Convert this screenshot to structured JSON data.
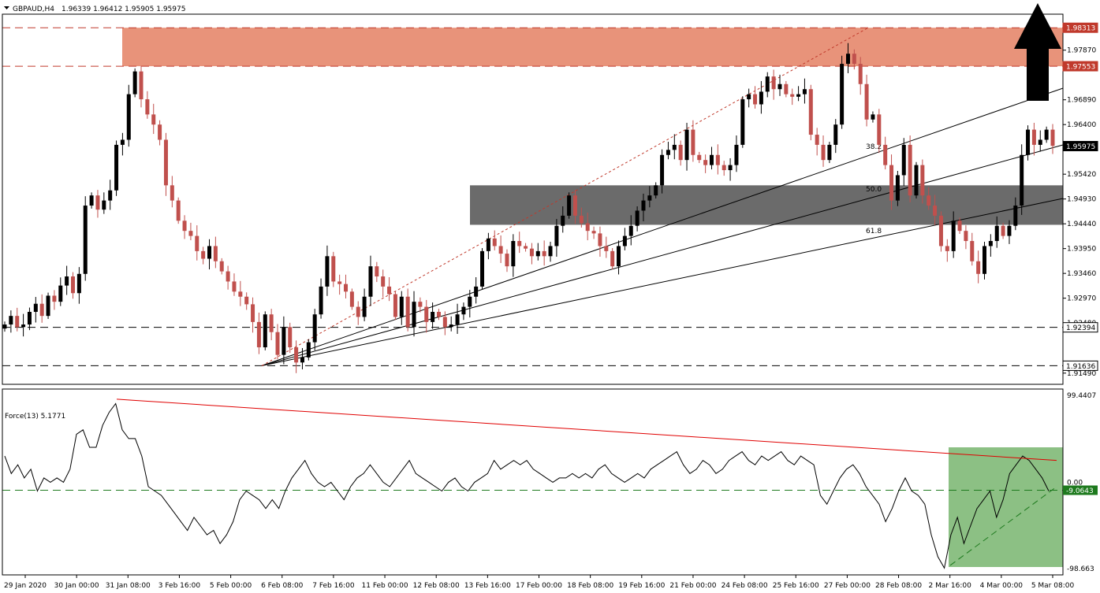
{
  "header": {
    "symbol": "GBPAUD,H4",
    "ohlc": "1.96339 1.96412 1.95905 1.95975"
  },
  "indicator": {
    "title": "Force(13) 5.1771"
  },
  "colors": {
    "bull": "#000000",
    "bear": "#c0504d",
    "resistance_zone": "#e8937a",
    "support_zone": "#6b6b6b",
    "force_zone": "#8cc084",
    "red_tag": "#c0392b",
    "green_tag": "#1e7a1e"
  },
  "chart_data": [
    {
      "type": "candlestick",
      "symbol": "GBPAUD",
      "timeframe": "H4",
      "y_ticks": [
        1.9787,
        1.9689,
        1.964,
        1.9542,
        1.9493,
        1.9444,
        1.9395,
        1.9346,
        1.9297,
        1.9248,
        1.9149
      ],
      "x_labels": [
        "29 Jan 2020",
        "30 Jan 00:00",
        "31 Jan 08:00",
        "3 Feb 16:00",
        "5 Feb 00:00",
        "6 Feb 08:00",
        "7 Feb 16:00",
        "11 Feb 00:00",
        "12 Feb 08:00",
        "13 Feb 16:00",
        "17 Feb 00:00",
        "18 Feb 08:00",
        "19 Feb 16:00",
        "21 Feb 00:00",
        "24 Feb 08:00",
        "25 Feb 16:00",
        "27 Feb 00:00",
        "28 Feb 08:00",
        "2 Mar 16:00",
        "4 Mar 00:00",
        "5 Mar 08:00"
      ],
      "price_tags": [
        {
          "value": "1.98313",
          "kind": "red"
        },
        {
          "value": "1.97553",
          "kind": "red"
        },
        {
          "value": "1.95975",
          "kind": "current"
        },
        {
          "value": "1.92394",
          "kind": "plain"
        },
        {
          "value": "1.91636",
          "kind": "plain"
        }
      ],
      "fib_labels": [
        "38.2",
        "50.0",
        "61.8"
      ],
      "zones": [
        {
          "name": "resistance",
          "low": 1.97553,
          "high": 1.98313
        },
        {
          "name": "support",
          "low": 1.9442,
          "high": 1.952
        }
      ],
      "closes": [
        1.9245,
        1.9262,
        1.924,
        1.9245,
        1.927,
        1.9286,
        1.9262,
        1.9302,
        1.929,
        1.9322,
        1.934,
        1.9307,
        1.9345,
        1.948,
        1.95,
        1.9472,
        1.949,
        1.951,
        1.96,
        1.961,
        1.97,
        1.9745,
        1.969,
        1.966,
        1.964,
        1.961,
        1.952,
        1.949,
        1.945,
        1.943,
        1.942,
        1.939,
        1.9375,
        1.94,
        1.937,
        1.935,
        1.933,
        1.931,
        1.93,
        1.9285,
        1.925,
        1.92,
        1.9265,
        1.923,
        1.9185,
        1.924,
        1.92,
        1.917,
        1.918,
        1.921,
        1.9265,
        1.932,
        1.938,
        1.933,
        1.9325,
        1.931,
        1.928,
        1.926,
        1.93,
        1.936,
        1.934,
        1.932,
        1.9305,
        1.926,
        1.93,
        1.924,
        1.929,
        1.928,
        1.925,
        1.927,
        1.926,
        1.924,
        1.9245,
        1.9265,
        1.928,
        1.93,
        1.932,
        1.939,
        1.9415,
        1.94,
        1.9385,
        1.936,
        1.941,
        1.94,
        1.9395,
        1.938,
        1.939,
        1.938,
        1.94,
        1.944,
        1.946,
        1.95,
        1.946,
        1.9445,
        1.943,
        1.9425,
        1.94,
        1.939,
        1.936,
        1.94,
        1.942,
        1.944,
        1.947,
        1.949,
        1.95,
        1.952,
        1.958,
        1.959,
        1.96,
        1.957,
        1.963,
        1.958,
        1.957,
        1.956,
        1.958,
        1.956,
        1.955,
        1.956,
        1.96,
        1.969,
        1.97,
        1.968,
        1.9705,
        1.9735,
        1.971,
        1.972,
        1.97,
        1.9695,
        1.97,
        1.971,
        1.962,
        1.96,
        1.957,
        1.96,
        1.964,
        1.976,
        1.978,
        1.976,
        1.972,
        1.965,
        1.966,
        1.96,
        1.956,
        1.949,
        1.954,
        1.96,
        1.95,
        1.956,
        1.95,
        1.948,
        1.946,
        1.94,
        1.939,
        1.945,
        1.943,
        1.941,
        1.937,
        1.9345,
        1.94,
        1.941,
        1.944,
        1.942,
        1.944,
        1.948,
        1.958,
        1.963,
        1.96,
        1.961,
        1.963,
        1.9598
      ],
      "force": {
        "type": "line",
        "name": "Force(13)",
        "ylim": [
          -98.663,
          99.4407
        ],
        "y_ticks": [
          "99.4407",
          "0.00",
          "-98.663"
        ],
        "level_tag": "-9.0643",
        "values": [
          30,
          10,
          20,
          5,
          15,
          -10,
          5,
          0,
          5,
          0,
          15,
          55,
          60,
          40,
          40,
          65,
          80,
          90,
          60,
          50,
          50,
          30,
          -5,
          -10,
          -15,
          -25,
          -35,
          -45,
          -55,
          -40,
          -50,
          -60,
          -55,
          -70,
          -60,
          -45,
          -20,
          -10,
          -15,
          -20,
          -30,
          -20,
          -30,
          -10,
          5,
          15,
          25,
          10,
          0,
          -5,
          0,
          -10,
          -20,
          -5,
          5,
          10,
          20,
          10,
          0,
          -5,
          5,
          15,
          25,
          10,
          5,
          0,
          -5,
          -10,
          0,
          5,
          -5,
          -10,
          0,
          5,
          10,
          25,
          15,
          20,
          25,
          20,
          25,
          15,
          10,
          5,
          0,
          5,
          5,
          10,
          5,
          10,
          5,
          15,
          20,
          10,
          5,
          0,
          5,
          10,
          5,
          15,
          20,
          25,
          30,
          35,
          20,
          10,
          15,
          25,
          20,
          10,
          15,
          25,
          30,
          35,
          25,
          20,
          30,
          25,
          30,
          35,
          25,
          20,
          30,
          25,
          20,
          -15,
          -25,
          -10,
          5,
          15,
          20,
          10,
          -5,
          -15,
          -25,
          -45,
          -30,
          -10,
          5,
          -10,
          -15,
          -25,
          -60,
          -85,
          -98,
          -60,
          -40,
          -70,
          -50,
          -30,
          -20,
          -10,
          -40,
          -20,
          10,
          20,
          30,
          25,
          15,
          5,
          -10
        ]
      }
    }
  ]
}
